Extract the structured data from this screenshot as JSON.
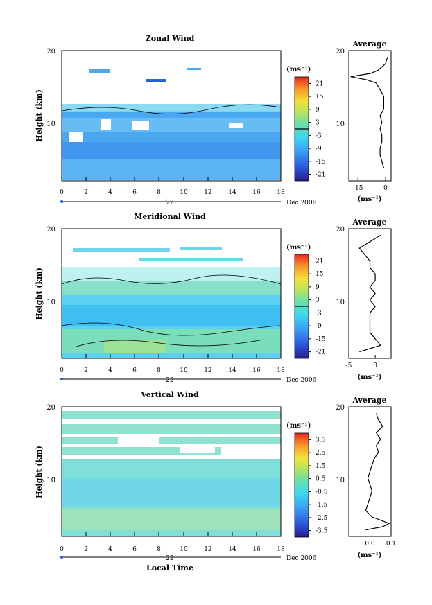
{
  "figure": {
    "xlabel": "Local Time",
    "date_label": "Dec 2006",
    "day_label": "22"
  },
  "chart_data": [
    {
      "type": "heatmap",
      "title": "Zonal Wind",
      "ylabel": "Height (km)",
      "xlim": [
        0,
        18
      ],
      "ylim": [
        0,
        20
      ],
      "xticks": [
        0,
        2,
        4,
        6,
        8,
        10,
        12,
        14,
        16,
        18
      ],
      "yticks": [
        10,
        20
      ],
      "colorbar": {
        "unit": "(ms⁻¹)",
        "min": -24,
        "max": 24,
        "ticks": [
          21,
          15,
          9,
          3,
          -3,
          -9,
          -15,
          -21
        ],
        "contour_level": 0
      },
      "field_summary": "Weak easterlies (-3 to -12 m/s) from ~2 to ~12 km, isolated echoes near 15-17 km",
      "average": {
        "title": "Average",
        "unit": "(ms⁻¹)",
        "xlim": [
          -20,
          3
        ],
        "xticks": [
          -15,
          0
        ],
        "heights": [
          2,
          3,
          4,
          5,
          6,
          7,
          8,
          9,
          10,
          11,
          12,
          13,
          14,
          15,
          15.5,
          16,
          16.5,
          17,
          17.5,
          18,
          19
        ],
        "values": [
          -1,
          -2,
          -3,
          -3,
          -2,
          -2,
          -3,
          -2,
          -3,
          -1,
          -1,
          -1,
          -3,
          -5,
          -10,
          -19,
          -8,
          -4,
          -2,
          0,
          1
        ]
      }
    },
    {
      "type": "heatmap",
      "title": "Meridional Wind",
      "ylabel": "Height (km)",
      "xlim": [
        0,
        18
      ],
      "ylim": [
        0,
        20
      ],
      "xticks": [
        0,
        2,
        4,
        6,
        8,
        10,
        12,
        14,
        16,
        18
      ],
      "yticks": [
        10,
        20
      ],
      "colorbar": {
        "unit": "(ms⁻¹)",
        "min": -24,
        "max": 24,
        "ticks": [
          21,
          15,
          9,
          3,
          -3,
          -9,
          -15,
          -21
        ],
        "contour_level": 0
      },
      "field_summary": "Mixed weak northerly/southerly (-6 to +3 m/s) from ~1 to ~12 km, sparse echoes near 15-17 km",
      "average": {
        "title": "Average",
        "unit": "(ms⁻¹)",
        "xlim": [
          -5,
          3
        ],
        "xticks": [
          -5,
          0
        ],
        "heights": [
          1,
          2,
          3,
          4,
          5,
          6,
          7,
          8,
          9,
          10,
          11,
          12,
          13,
          14,
          15,
          16,
          17,
          18,
          19
        ],
        "values": [
          -3,
          1,
          0,
          -1,
          -1,
          -1,
          -1,
          0,
          -1,
          0,
          -1,
          0,
          0,
          -1,
          -1,
          -2,
          -3,
          -1,
          1
        ]
      }
    },
    {
      "type": "heatmap",
      "title": "Vertical Wind",
      "ylabel": "Height (km)",
      "xlabel": "Local Time",
      "xlim": [
        0,
        18
      ],
      "ylim": [
        0,
        20
      ],
      "xticks": [
        0,
        2,
        4,
        6,
        8,
        10,
        12,
        14,
        16,
        18
      ],
      "yticks": [
        10,
        20
      ],
      "colorbar": {
        "unit": "(ms⁻¹)",
        "min": -4,
        "max": 4,
        "ticks": [
          3.5,
          2.5,
          1.5,
          0.5,
          -0.5,
          -1.5,
          -2.5,
          -3.5
        ]
      },
      "field_summary": "Small vertical velocities (-0.5 to +0.5 m/s) from ~1 to ~12 km and ~15 to ~19 km",
      "average": {
        "title": "Average",
        "unit": "(ms⁻¹)",
        "xlim": [
          -0.1,
          0.1
        ],
        "xticks": [
          0.0,
          0.1
        ],
        "xticklabels": [
          "0.0",
          "0.1"
        ],
        "heights": [
          1,
          1.5,
          2,
          2.5,
          3,
          4,
          5,
          6,
          7,
          8,
          9,
          10,
          11,
          12,
          13,
          14,
          15,
          16,
          17,
          18,
          19
        ],
        "values": [
          -0.02,
          0.06,
          0.09,
          0.05,
          0.01,
          -0.02,
          -0.01,
          0.0,
          0.01,
          0.0,
          -0.01,
          0.0,
          0.01,
          0.02,
          0.04,
          0.03,
          0.05,
          0.03,
          0.06,
          0.04,
          0.03
        ]
      }
    }
  ]
}
